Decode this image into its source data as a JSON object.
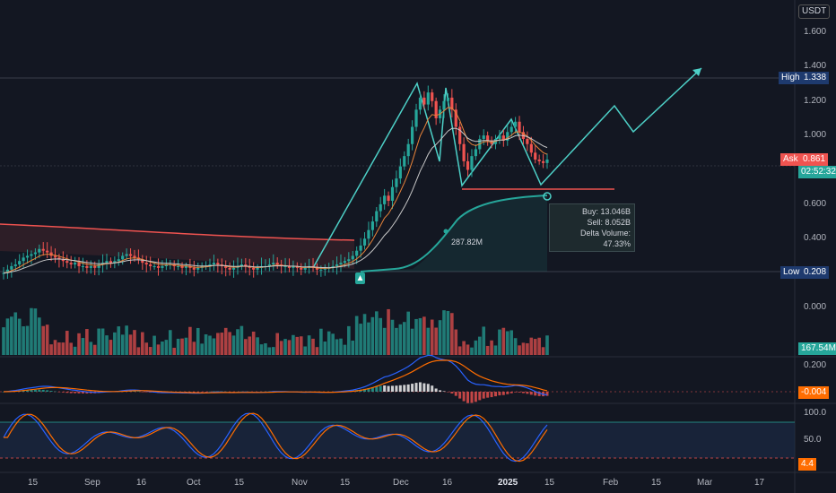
{
  "currency_badge": "USDT",
  "price_axis": {
    "ticks": [
      {
        "label": "1.600",
        "v": 1.6
      },
      {
        "label": "1.400",
        "v": 1.4
      },
      {
        "label": "1.200",
        "v": 1.2
      },
      {
        "label": "1.000",
        "v": 1.0
      },
      {
        "label": "0.600",
        "v": 0.6
      },
      {
        "label": "0.400",
        "v": 0.4
      },
      {
        "label": "0.000",
        "v": 0.0
      }
    ]
  },
  "markers": {
    "high": {
      "label": "High",
      "value": "1.338",
      "v": 1.338
    },
    "ask": {
      "label": "Ask",
      "value": "0.861",
      "v": 0.861,
      "countdown": "02:52:32"
    },
    "low": {
      "label": "Low",
      "value": "0.208",
      "v": 0.208
    },
    "volume": "167.54M"
  },
  "info_box": {
    "buy": "Buy: 13.046B",
    "sell": "Sell: 8.052B",
    "delta": "Delta Volume: 47.33%"
  },
  "annotation_volume": "287.82M",
  "macd_panel": {
    "top_label": "0.200",
    "value": "-0.004"
  },
  "stoch_panel": {
    "ticks": [
      "100.0",
      "50.0"
    ],
    "value": "4.4"
  },
  "time_axis": [
    "15",
    "Sep",
    "16",
    "Oct",
    "15",
    "Nov",
    "15",
    "Dec",
    "16",
    "2025",
    "15",
    "Feb",
    "15",
    "Mar",
    "17"
  ],
  "colors": {
    "background": "#131722",
    "up": "#26a69a",
    "down": "#ef5350",
    "projection": "#4dd0c7",
    "ema": "#e8843a",
    "high_tag": "#1e3a6e",
    "ask_tag": "#ef5350",
    "countdown_tag": "#26a69a",
    "macd_blue": "#2962ff",
    "macd_orange": "#ff6d00"
  },
  "chart_data": {
    "type": "candlestick",
    "price_range": [
      0.0,
      1.65
    ],
    "close_series": [
      0.2,
      0.22,
      0.24,
      0.25,
      0.27,
      0.29,
      0.3,
      0.31,
      0.32,
      0.34,
      0.33,
      0.32,
      0.3,
      0.29,
      0.28,
      0.27,
      0.26,
      0.25,
      0.26,
      0.24,
      0.24,
      0.23,
      0.24,
      0.23,
      0.25,
      0.26,
      0.27,
      0.26,
      0.27,
      0.28,
      0.3,
      0.31,
      0.3,
      0.29,
      0.28,
      0.26,
      0.25,
      0.24,
      0.24,
      0.23,
      0.24,
      0.25,
      0.25,
      0.24,
      0.24,
      0.23,
      0.24,
      0.23,
      0.22,
      0.23,
      0.24,
      0.24,
      0.25,
      0.26,
      0.25,
      0.24,
      0.23,
      0.22,
      0.23,
      0.24,
      0.25,
      0.24,
      0.23,
      0.22,
      0.23,
      0.24,
      0.24,
      0.25,
      0.26,
      0.25,
      0.24,
      0.24,
      0.23,
      0.24,
      0.23,
      0.22,
      0.23,
      0.24,
      0.23,
      0.22,
      0.22,
      0.23,
      0.23,
      0.24,
      0.25,
      0.26,
      0.27,
      0.28,
      0.3,
      0.33,
      0.36,
      0.4,
      0.45,
      0.5,
      0.56,
      0.6,
      0.65,
      0.62,
      0.7,
      0.75,
      0.82,
      0.88,
      0.95,
      1.05,
      1.15,
      1.22,
      1.18,
      1.25,
      1.2,
      1.1,
      1.15,
      1.2,
      1.22,
      1.15,
      1.05,
      0.95,
      0.85,
      0.8,
      0.88,
      0.92,
      0.98,
      1.0,
      0.97,
      0.95,
      0.98,
      1.0,
      0.97,
      1.02,
      1.05,
      1.08,
      1.02,
      0.98,
      0.95,
      0.9,
      0.86,
      0.85,
      0.84,
      0.86
    ]
  }
}
